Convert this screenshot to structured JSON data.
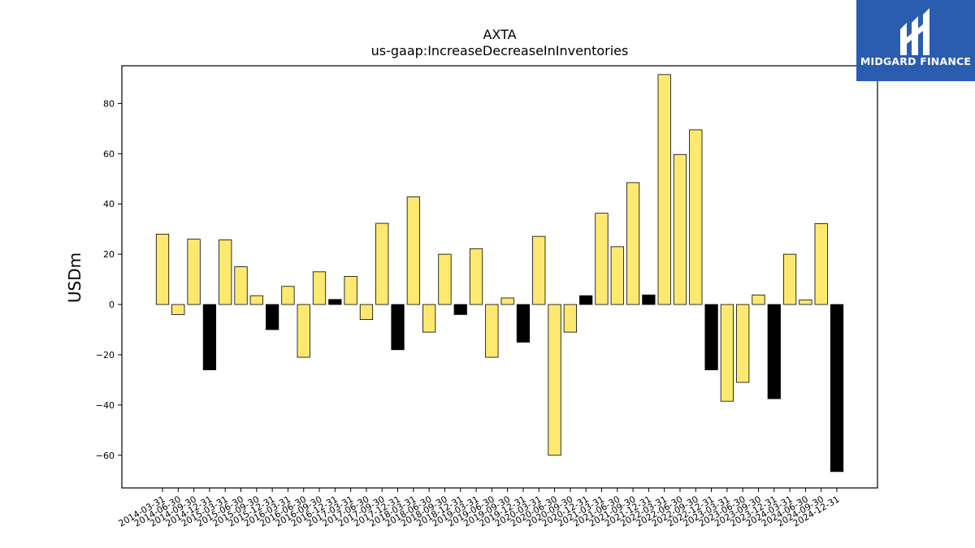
{
  "brand": {
    "name": "MIDGARD FINANCE",
    "logo_icon": "midgard-logo-icon",
    "bg_color": "#2a5db0"
  },
  "chart_data": {
    "type": "bar",
    "title": "AXTA",
    "subtitle": "us-gaap:IncreaseDecreaseInInventories",
    "xlabel": "",
    "ylabel": "USDm",
    "ylim": [
      -73,
      95
    ],
    "yticks": [
      -60,
      -40,
      -20,
      0,
      20,
      40,
      60,
      80
    ],
    "grid": false,
    "colors": {
      "default": "#fde970",
      "highlight": "#000000",
      "edge": "#000000"
    },
    "categories": [
      "2014-03-31",
      "2014-06-30",
      "2014-09-30",
      "2014-12-31",
      "2015-03-31",
      "2015-06-30",
      "2015-09-30",
      "2015-12-31",
      "2016-03-31",
      "2016-06-30",
      "2016-09-30",
      "2016-12-31",
      "2017-03-31",
      "2017-06-30",
      "2017-09-30",
      "2017-12-31",
      "2018-03-31",
      "2018-06-30",
      "2018-09-30",
      "2018-12-31",
      "2019-03-31",
      "2019-06-30",
      "2019-09-30",
      "2019-12-31",
      "2020-03-31",
      "2020-06-30",
      "2020-09-30",
      "2020-12-31",
      "2021-03-31",
      "2021-06-30",
      "2021-09-30",
      "2021-12-31",
      "2022-03-31",
      "2022-06-30",
      "2022-09-30",
      "2022-12-31",
      "2023-03-31",
      "2023-06-30",
      "2023-09-30",
      "2023-12-31",
      "2024-03-31",
      "2024-06-30",
      "2024-09-30",
      "2024-12-31"
    ],
    "values": [
      28,
      -4,
      26,
      -26,
      25.7,
      15,
      3.5,
      -10,
      7.2,
      -21,
      13,
      2,
      11.2,
      -6,
      32.3,
      -18,
      42.8,
      -11,
      20,
      -4,
      22.2,
      -21,
      2.6,
      -15,
      27.1,
      -60,
      -11,
      3.5,
      36.3,
      23,
      48.5,
      3.8,
      91.5,
      59.7,
      69.5,
      -26,
      -38.5,
      -31,
      3.8,
      -37.5,
      20,
      1.8,
      32.2,
      -66.5
    ],
    "highlight": [
      false,
      false,
      false,
      true,
      false,
      false,
      false,
      true,
      false,
      false,
      false,
      true,
      false,
      false,
      false,
      true,
      false,
      false,
      false,
      true,
      false,
      false,
      false,
      true,
      false,
      false,
      false,
      true,
      false,
      false,
      false,
      true,
      false,
      false,
      false,
      true,
      false,
      false,
      false,
      true,
      false,
      false,
      false,
      true
    ]
  }
}
